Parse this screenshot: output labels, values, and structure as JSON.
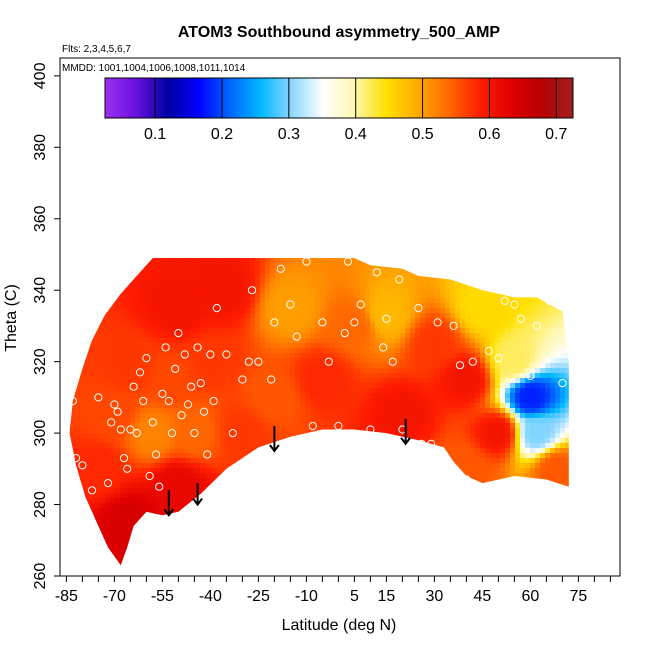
{
  "chart_data": {
    "type": "heatmap",
    "title": "ATOM3 Southbound asymmetry_500_AMP",
    "flights_note": "Flts: 2,3,4,5,6,7",
    "dates_note": "MMDD: 1001,1004,1006,1008,1011,1014",
    "xlabel": "Latitude (deg N)",
    "ylabel": "Theta (C)",
    "xlim": [
      -87,
      88
    ],
    "ylim": [
      260,
      405
    ],
    "x_ticks": [
      -85,
      -70,
      -55,
      -40,
      -25,
      -10,
      5,
      15,
      30,
      45,
      60,
      75
    ],
    "y_ticks": [
      260,
      280,
      300,
      320,
      340,
      360,
      380,
      400
    ],
    "colorbar": {
      "min": 0.025,
      "max": 0.725,
      "ticks": [
        0.1,
        0.2,
        0.3,
        0.4,
        0.5,
        0.6,
        0.7
      ],
      "colors": [
        "#9a30f0",
        "#6a10e0",
        "#0000a0",
        "#0000ff",
        "#0066ff",
        "#00b8ff",
        "#8fd8ff",
        "#ffffff",
        "#fff7b0",
        "#ffe000",
        "#ffaa00",
        "#ff6a00",
        "#ff2000",
        "#e00000",
        "#b80000",
        "#a02020"
      ]
    },
    "field_samples": [
      {
        "x": -75,
        "y": 290,
        "v": 0.58
      },
      {
        "x": -70,
        "y": 305,
        "v": 0.56
      },
      {
        "x": -65,
        "y": 318,
        "v": 0.57
      },
      {
        "x": -58,
        "y": 300,
        "v": 0.52
      },
      {
        "x": -52,
        "y": 315,
        "v": 0.56
      },
      {
        "x": -50,
        "y": 335,
        "v": 0.6
      },
      {
        "x": -45,
        "y": 300,
        "v": 0.54
      },
      {
        "x": -40,
        "y": 320,
        "v": 0.57
      },
      {
        "x": -35,
        "y": 340,
        "v": 0.6
      },
      {
        "x": -30,
        "y": 300,
        "v": 0.57
      },
      {
        "x": -20,
        "y": 310,
        "v": 0.55
      },
      {
        "x": -15,
        "y": 335,
        "v": 0.5
      },
      {
        "x": -5,
        "y": 315,
        "v": 0.58
      },
      {
        "x": 5,
        "y": 330,
        "v": 0.54
      },
      {
        "x": 15,
        "y": 333,
        "v": 0.48
      },
      {
        "x": 20,
        "y": 305,
        "v": 0.6
      },
      {
        "x": 30,
        "y": 325,
        "v": 0.57
      },
      {
        "x": 40,
        "y": 315,
        "v": 0.6
      },
      {
        "x": 45,
        "y": 335,
        "v": 0.45
      },
      {
        "x": 55,
        "y": 320,
        "v": 0.42
      },
      {
        "x": 60,
        "y": 310,
        "v": 0.18
      },
      {
        "x": 62,
        "y": 300,
        "v": 0.3
      },
      {
        "x": 50,
        "y": 300,
        "v": 0.6
      },
      {
        "x": 68,
        "y": 290,
        "v": 0.55
      },
      {
        "x": -65,
        "y": 275,
        "v": 0.64
      },
      {
        "x": -50,
        "y": 285,
        "v": 0.62
      },
      {
        "x": 40,
        "y": 290,
        "v": 0.55
      }
    ],
    "data_region": {
      "top": [
        [
          -83,
          309
        ],
        [
          -80,
          318
        ],
        [
          -77,
          326
        ],
        [
          -73,
          333
        ],
        [
          -68,
          339
        ],
        [
          -62,
          345
        ],
        [
          -58,
          349
        ],
        [
          5,
          349
        ],
        [
          10,
          347
        ],
        [
          20,
          346
        ],
        [
          25,
          344
        ],
        [
          35,
          343
        ],
        [
          45,
          340
        ],
        [
          55,
          338
        ],
        [
          62,
          338
        ],
        [
          70,
          334
        ],
        [
          72,
          320
        ],
        [
          72,
          285
        ]
      ],
      "bottom": [
        [
          72,
          285
        ],
        [
          65,
          287
        ],
        [
          55,
          288
        ],
        [
          45,
          286
        ],
        [
          40,
          288
        ],
        [
          36,
          292
        ],
        [
          33,
          296
        ],
        [
          25,
          298
        ],
        [
          15,
          300
        ],
        [
          5,
          301
        ],
        [
          -5,
          301
        ],
        [
          -15,
          299
        ],
        [
          -25,
          296
        ],
        [
          -35,
          290
        ],
        [
          -43,
          283
        ],
        [
          -50,
          278
        ],
        [
          -55,
          277
        ],
        [
          -60,
          278
        ],
        [
          -64,
          274
        ],
        [
          -66,
          268
        ],
        [
          -68,
          263
        ],
        [
          -72,
          268
        ],
        [
          -75,
          274
        ],
        [
          -79,
          282
        ],
        [
          -82,
          291
        ],
        [
          -84,
          300
        ]
      ]
    },
    "observation_points": [
      [
        -83,
        309
      ],
      [
        -82,
        293
      ],
      [
        -80,
        291
      ],
      [
        -77,
        284
      ],
      [
        -75,
        310
      ],
      [
        -72,
        286
      ],
      [
        -71,
        303
      ],
      [
        -70,
        308
      ],
      [
        -69,
        306
      ],
      [
        -68,
        301
      ],
      [
        -67,
        293
      ],
      [
        -66,
        290
      ],
      [
        -65,
        301
      ],
      [
        -64,
        313
      ],
      [
        -63,
        300
      ],
      [
        -62,
        317
      ],
      [
        -61,
        309
      ],
      [
        -60,
        321
      ],
      [
        -59,
        288
      ],
      [
        -58,
        303
      ],
      [
        -57,
        294
      ],
      [
        -56,
        285
      ],
      [
        -55,
        311
      ],
      [
        -54,
        324
      ],
      [
        -53,
        309
      ],
      [
        -52,
        300
      ],
      [
        -51,
        318
      ],
      [
        -50,
        328
      ],
      [
        -49,
        305
      ],
      [
        -48,
        322
      ],
      [
        -47,
        308
      ],
      [
        -46,
        313
      ],
      [
        -45,
        300
      ],
      [
        -44,
        324
      ],
      [
        -43,
        314
      ],
      [
        -42,
        306
      ],
      [
        -41,
        294
      ],
      [
        -40,
        322
      ],
      [
        -39,
        309
      ],
      [
        -38,
        335
      ],
      [
        -35,
        322
      ],
      [
        -33,
        300
      ],
      [
        -30,
        315
      ],
      [
        -28,
        320
      ],
      [
        -27,
        340
      ],
      [
        -25,
        320
      ],
      [
        -23,
        294
      ],
      [
        -21,
        315
      ],
      [
        -20,
        331
      ],
      [
        -18,
        346
      ],
      [
        -15,
        336
      ],
      [
        -13,
        327
      ],
      [
        -10,
        348
      ],
      [
        -8,
        302
      ],
      [
        -5,
        331
      ],
      [
        -3,
        320
      ],
      [
        0,
        302
      ],
      [
        2,
        328
      ],
      [
        3,
        348
      ],
      [
        5,
        331
      ],
      [
        7,
        336
      ],
      [
        10,
        301
      ],
      [
        12,
        345
      ],
      [
        14,
        324
      ],
      [
        15,
        332
      ],
      [
        17,
        320
      ],
      [
        19,
        343
      ],
      [
        20,
        301
      ],
      [
        22,
        297
      ],
      [
        25,
        335
      ],
      [
        26,
        297
      ],
      [
        29,
        297
      ],
      [
        31,
        331
      ],
      [
        34,
        292
      ],
      [
        36,
        330
      ],
      [
        38,
        319
      ],
      [
        40,
        287
      ],
      [
        42,
        320
      ],
      [
        44,
        344
      ],
      [
        46,
        283
      ],
      [
        47,
        323
      ],
      [
        50,
        321
      ],
      [
        52,
        337
      ],
      [
        55,
        336
      ],
      [
        57,
        332
      ],
      [
        60,
        316
      ],
      [
        62,
        330
      ],
      [
        66,
        337
      ],
      [
        70,
        314
      ]
    ],
    "arrows": [
      {
        "x": -53,
        "y_tail": 284,
        "y_head": 277
      },
      {
        "x": -44,
        "y_tail": 286,
        "y_head": 280
      },
      {
        "x": -20,
        "y_tail": 302,
        "y_head": 295
      },
      {
        "x": 21,
        "y_tail": 304,
        "y_head": 297
      }
    ]
  }
}
